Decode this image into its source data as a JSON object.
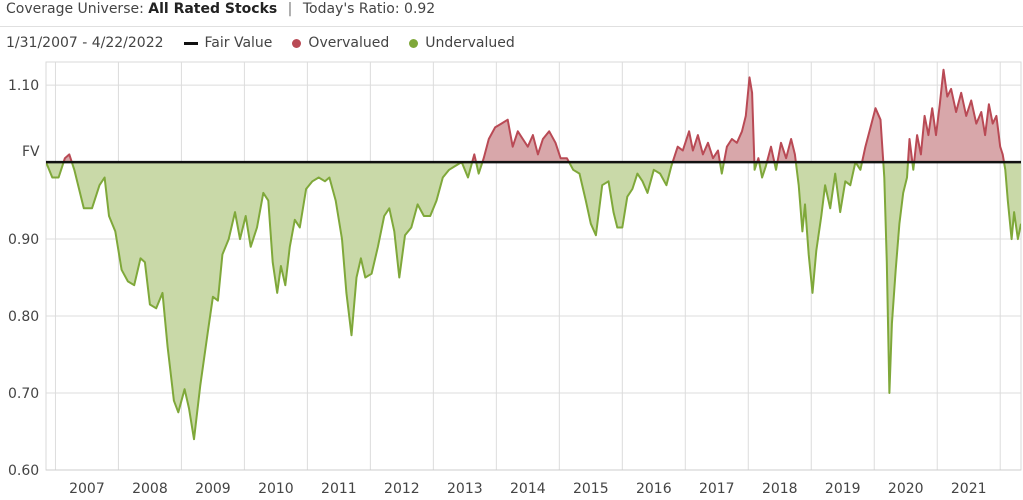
{
  "header": {
    "universe_label": "Coverage Universe:",
    "universe_value": "All Rated Stocks",
    "ratio_label": "Today's Ratio:",
    "ratio_value": "0.92"
  },
  "legend": {
    "date_range": "1/31/2007 - 4/22/2022",
    "items": [
      {
        "label": "Fair Value",
        "color": "#111111",
        "shape": "line"
      },
      {
        "label": "Overvalued",
        "color": "#b94a55",
        "shape": "dot"
      },
      {
        "label": "Undervalued",
        "color": "#7fa83a",
        "shape": "dot"
      }
    ]
  },
  "chart_data": {
    "type": "area",
    "baseline": 1.0,
    "baseline_label": "FV",
    "ylim": [
      0.6,
      1.13
    ],
    "y_ticks": [
      {
        "value": 1.1,
        "label": "1.10"
      },
      {
        "value": 0.9,
        "label": "0.90"
      },
      {
        "value": 0.8,
        "label": "0.80"
      },
      {
        "value": 0.7,
        "label": "0.70"
      },
      {
        "value": 0.6,
        "label": "0.60"
      }
    ],
    "xlim": [
      2006.85,
      2022.33
    ],
    "x_ticks": [
      "2007",
      "2008",
      "2009",
      "2010",
      "2011",
      "2012",
      "2013",
      "2014",
      "2015",
      "2016",
      "2017",
      "2018",
      "2019",
      "2020",
      "2021"
    ],
    "colors": {
      "over": "#b94a55",
      "over_fill": "#d8a7aa",
      "under": "#7fa83a",
      "under_fill": "#c9d9a8",
      "fair_value": "#111111"
    },
    "points": [
      [
        2006.85,
        1.0
      ],
      [
        2006.95,
        0.98
      ],
      [
        2007.05,
        0.98
      ],
      [
        2007.15,
        1.005
      ],
      [
        2007.22,
        1.01
      ],
      [
        2007.3,
        0.99
      ],
      [
        2007.45,
        0.94
      ],
      [
        2007.58,
        0.94
      ],
      [
        2007.7,
        0.97
      ],
      [
        2007.78,
        0.98
      ],
      [
        2007.85,
        0.93
      ],
      [
        2007.95,
        0.91
      ],
      [
        2008.05,
        0.86
      ],
      [
        2008.15,
        0.845
      ],
      [
        2008.25,
        0.84
      ],
      [
        2008.35,
        0.875
      ],
      [
        2008.42,
        0.87
      ],
      [
        2008.5,
        0.815
      ],
      [
        2008.6,
        0.81
      ],
      [
        2008.7,
        0.83
      ],
      [
        2008.78,
        0.76
      ],
      [
        2008.88,
        0.69
      ],
      [
        2008.95,
        0.675
      ],
      [
        2009.05,
        0.705
      ],
      [
        2009.12,
        0.68
      ],
      [
        2009.2,
        0.64
      ],
      [
        2009.3,
        0.71
      ],
      [
        2009.42,
        0.78
      ],
      [
        2009.5,
        0.825
      ],
      [
        2009.58,
        0.82
      ],
      [
        2009.65,
        0.88
      ],
      [
        2009.75,
        0.9
      ],
      [
        2009.85,
        0.935
      ],
      [
        2009.93,
        0.9
      ],
      [
        2010.02,
        0.93
      ],
      [
        2010.1,
        0.89
      ],
      [
        2010.2,
        0.915
      ],
      [
        2010.3,
        0.96
      ],
      [
        2010.38,
        0.95
      ],
      [
        2010.45,
        0.87
      ],
      [
        2010.52,
        0.83
      ],
      [
        2010.58,
        0.865
      ],
      [
        2010.65,
        0.84
      ],
      [
        2010.72,
        0.89
      ],
      [
        2010.8,
        0.925
      ],
      [
        2010.88,
        0.915
      ],
      [
        2010.98,
        0.965
      ],
      [
        2011.08,
        0.975
      ],
      [
        2011.18,
        0.98
      ],
      [
        2011.28,
        0.975
      ],
      [
        2011.35,
        0.98
      ],
      [
        2011.45,
        0.95
      ],
      [
        2011.55,
        0.9
      ],
      [
        2011.62,
        0.83
      ],
      [
        2011.7,
        0.775
      ],
      [
        2011.78,
        0.85
      ],
      [
        2011.85,
        0.875
      ],
      [
        2011.92,
        0.85
      ],
      [
        2012.02,
        0.855
      ],
      [
        2012.12,
        0.89
      ],
      [
        2012.22,
        0.93
      ],
      [
        2012.3,
        0.94
      ],
      [
        2012.38,
        0.91
      ],
      [
        2012.46,
        0.85
      ],
      [
        2012.55,
        0.905
      ],
      [
        2012.65,
        0.915
      ],
      [
        2012.75,
        0.945
      ],
      [
        2012.85,
        0.93
      ],
      [
        2012.95,
        0.93
      ],
      [
        2013.05,
        0.95
      ],
      [
        2013.15,
        0.98
      ],
      [
        2013.25,
        0.99
      ],
      [
        2013.35,
        0.995
      ],
      [
        2013.45,
        1.0
      ],
      [
        2013.55,
        0.98
      ],
      [
        2013.65,
        1.01
      ],
      [
        2013.72,
        0.985
      ],
      [
        2013.8,
        1.005
      ],
      [
        2013.88,
        1.03
      ],
      [
        2013.98,
        1.045
      ],
      [
        2014.08,
        1.05
      ],
      [
        2014.18,
        1.055
      ],
      [
        2014.26,
        1.02
      ],
      [
        2014.34,
        1.04
      ],
      [
        2014.42,
        1.03
      ],
      [
        2014.5,
        1.02
      ],
      [
        2014.58,
        1.035
      ],
      [
        2014.66,
        1.01
      ],
      [
        2014.74,
        1.03
      ],
      [
        2014.84,
        1.04
      ],
      [
        2014.94,
        1.025
      ],
      [
        2015.02,
        1.005
      ],
      [
        2015.12,
        1.005
      ],
      [
        2015.22,
        0.99
      ],
      [
        2015.32,
        0.985
      ],
      [
        2015.42,
        0.95
      ],
      [
        2015.5,
        0.92
      ],
      [
        2015.58,
        0.905
      ],
      [
        2015.68,
        0.97
      ],
      [
        2015.78,
        0.975
      ],
      [
        2015.86,
        0.935
      ],
      [
        2015.92,
        0.915
      ],
      [
        2016.0,
        0.915
      ],
      [
        2016.08,
        0.955
      ],
      [
        2016.16,
        0.965
      ],
      [
        2016.24,
        0.985
      ],
      [
        2016.32,
        0.975
      ],
      [
        2016.4,
        0.96
      ],
      [
        2016.5,
        0.99
      ],
      [
        2016.6,
        0.985
      ],
      [
        2016.7,
        0.97
      ],
      [
        2016.78,
        0.995
      ],
      [
        2016.88,
        1.02
      ],
      [
        2016.96,
        1.015
      ],
      [
        2017.06,
        1.04
      ],
      [
        2017.12,
        1.015
      ],
      [
        2017.2,
        1.035
      ],
      [
        2017.28,
        1.01
      ],
      [
        2017.36,
        1.025
      ],
      [
        2017.44,
        1.005
      ],
      [
        2017.52,
        1.015
      ],
      [
        2017.58,
        0.985
      ],
      [
        2017.66,
        1.02
      ],
      [
        2017.74,
        1.03
      ],
      [
        2017.82,
        1.025
      ],
      [
        2017.9,
        1.04
      ],
      [
        2017.96,
        1.06
      ],
      [
        2018.02,
        1.11
      ],
      [
        2018.06,
        1.09
      ],
      [
        2018.1,
        0.99
      ],
      [
        2018.16,
        1.005
      ],
      [
        2018.22,
        0.98
      ],
      [
        2018.28,
        0.995
      ],
      [
        2018.36,
        1.02
      ],
      [
        2018.44,
        0.99
      ],
      [
        2018.52,
        1.025
      ],
      [
        2018.6,
        1.005
      ],
      [
        2018.68,
        1.03
      ],
      [
        2018.74,
        1.01
      ],
      [
        2018.8,
        0.97
      ],
      [
        2018.86,
        0.91
      ],
      [
        2018.9,
        0.945
      ],
      [
        2018.96,
        0.88
      ],
      [
        2019.02,
        0.83
      ],
      [
        2019.08,
        0.885
      ],
      [
        2019.16,
        0.93
      ],
      [
        2019.22,
        0.97
      ],
      [
        2019.3,
        0.94
      ],
      [
        2019.38,
        0.985
      ],
      [
        2019.46,
        0.935
      ],
      [
        2019.54,
        0.975
      ],
      [
        2019.62,
        0.97
      ],
      [
        2019.7,
        1.0
      ],
      [
        2019.78,
        0.99
      ],
      [
        2019.86,
        1.02
      ],
      [
        2019.94,
        1.045
      ],
      [
        2020.02,
        1.07
      ],
      [
        2020.1,
        1.055
      ],
      [
        2020.16,
        0.98
      ],
      [
        2020.2,
        0.87
      ],
      [
        2020.24,
        0.7
      ],
      [
        2020.28,
        0.79
      ],
      [
        2020.34,
        0.86
      ],
      [
        2020.4,
        0.92
      ],
      [
        2020.46,
        0.96
      ],
      [
        2020.52,
        0.98
      ],
      [
        2020.56,
        1.03
      ],
      [
        2020.62,
        0.99
      ],
      [
        2020.68,
        1.035
      ],
      [
        2020.74,
        1.01
      ],
      [
        2020.8,
        1.06
      ],
      [
        2020.86,
        1.035
      ],
      [
        2020.92,
        1.07
      ],
      [
        2020.98,
        1.035
      ],
      [
        2021.04,
        1.075
      ],
      [
        2021.1,
        1.12
      ],
      [
        2021.16,
        1.085
      ],
      [
        2021.22,
        1.095
      ],
      [
        2021.3,
        1.065
      ],
      [
        2021.38,
        1.09
      ],
      [
        2021.46,
        1.06
      ],
      [
        2021.54,
        1.08
      ],
      [
        2021.62,
        1.05
      ],
      [
        2021.7,
        1.065
      ],
      [
        2021.76,
        1.035
      ],
      [
        2021.82,
        1.075
      ],
      [
        2021.88,
        1.05
      ],
      [
        2021.94,
        1.06
      ],
      [
        2022.0,
        1.02
      ],
      [
        2022.04,
        1.01
      ],
      [
        2022.08,
        0.99
      ],
      [
        2022.12,
        0.95
      ],
      [
        2022.18,
        0.9
      ],
      [
        2022.22,
        0.935
      ],
      [
        2022.28,
        0.9
      ],
      [
        2022.33,
        0.92
      ]
    ]
  }
}
